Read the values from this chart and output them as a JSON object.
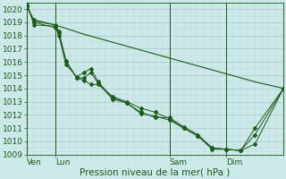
{
  "title": "",
  "xlabel": "Pression niveau de la mer( hPa )",
  "bg_color": "#cce8e8",
  "grid_color_major": "#a8c8c8",
  "grid_color_minor": "#c0d8d8",
  "line_color": "#1a5c1a",
  "ylim": [
    1009,
    1020.5
  ],
  "yticks": [
    1009,
    1010,
    1011,
    1012,
    1013,
    1014,
    1015,
    1016,
    1017,
    1018,
    1019,
    1020
  ],
  "xtick_labels": [
    "Ven",
    "Lun",
    "Sam",
    "Dim"
  ],
  "xtick_positions": [
    0,
    24,
    120,
    168
  ],
  "xlim": [
    0,
    216
  ],
  "vline_positions": [
    0,
    24,
    120,
    168
  ],
  "line1_x": [
    0,
    6,
    24,
    48,
    72,
    96,
    120,
    144,
    168,
    192,
    216
  ],
  "line1_y": [
    1020.2,
    1019.1,
    1018.8,
    1018.1,
    1017.5,
    1016.9,
    1016.3,
    1015.7,
    1015.1,
    1014.5,
    1014.0
  ],
  "line2_x": [
    0,
    6,
    24,
    27,
    33,
    42,
    48,
    54,
    60,
    72,
    84,
    96,
    108,
    120,
    132,
    144,
    156,
    168,
    180,
    192,
    216
  ],
  "line2_y": [
    1020.2,
    1019.2,
    1018.8,
    1018.3,
    1016.1,
    1014.8,
    1014.6,
    1014.3,
    1014.3,
    1013.4,
    1013.0,
    1012.5,
    1012.2,
    1011.7,
    1011.0,
    1010.4,
    1009.5,
    1009.4,
    1009.3,
    1009.8,
    1014.0
  ],
  "line3_x": [
    0,
    6,
    24,
    27,
    33,
    42,
    48,
    54,
    60,
    72,
    84,
    96,
    108,
    120,
    132,
    144,
    156,
    168,
    180,
    192,
    216
  ],
  "line3_y": [
    1020.5,
    1018.8,
    1018.7,
    1018.0,
    1015.8,
    1014.9,
    1015.2,
    1015.5,
    1014.5,
    1013.3,
    1012.9,
    1012.2,
    1011.8,
    1011.8,
    1011.1,
    1010.5,
    1009.5,
    1009.4,
    1009.3,
    1011.0,
    1014.0
  ],
  "line4_x": [
    0,
    6,
    24,
    27,
    33,
    42,
    48,
    54,
    60,
    72,
    84,
    96,
    108,
    120,
    132,
    144,
    156,
    168,
    180,
    192,
    216
  ],
  "line4_y": [
    1020.3,
    1019.0,
    1018.6,
    1018.2,
    1016.0,
    1014.8,
    1014.8,
    1015.2,
    1014.4,
    1013.2,
    1012.9,
    1012.1,
    1011.9,
    1011.6,
    1011.0,
    1010.4,
    1009.4,
    1009.4,
    1009.3,
    1010.5,
    1014.0
  ],
  "font_size": 6.5,
  "xlabel_fontsize": 7.5
}
